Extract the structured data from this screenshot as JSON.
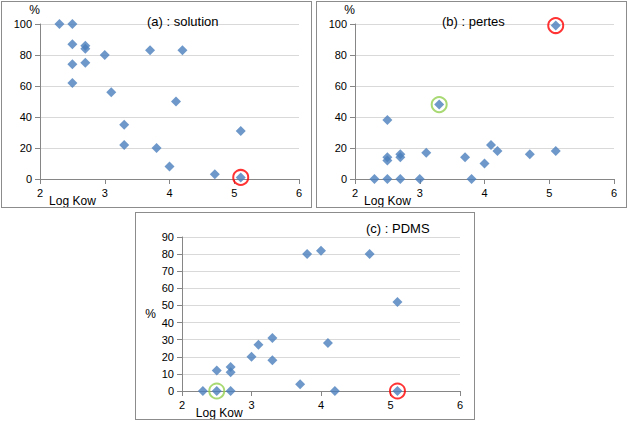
{
  "chart_data": [
    {
      "type": "scatter",
      "title": "(a) : solution",
      "x_label": "Log Kow",
      "y_label": "%",
      "xlim": [
        2,
        6
      ],
      "xticks": [
        2,
        3,
        4,
        5,
        6
      ],
      "ylim": [
        0,
        100
      ],
      "yticks": [
        0,
        20,
        40,
        60,
        80,
        100
      ],
      "grid": true,
      "series": [
        {
          "color": "#4a7ebb",
          "marker": "diamond",
          "x": [
            2.3,
            2.5,
            2.5,
            2.5,
            2.5,
            2.7,
            2.7,
            2.7,
            3.0,
            3.1,
            3.3,
            3.3,
            3.7,
            3.8,
            4.0,
            4.1,
            4.2,
            4.7,
            5.1,
            5.1
          ],
          "values": [
            100,
            100,
            87,
            74,
            62,
            86,
            84,
            75,
            80,
            56,
            35,
            22,
            83,
            20,
            8,
            50,
            83,
            3,
            31,
            1
          ]
        },
        {
          "color": "#ff0000",
          "marker": "ring",
          "x": [
            5.1
          ],
          "values": [
            1
          ]
        }
      ]
    },
    {
      "type": "scatter",
      "title": "(b) : pertes",
      "x_label": "Log Kow",
      "y_label": "%",
      "xlim": [
        2,
        6
      ],
      "xticks": [
        2,
        3,
        4,
        5,
        6
      ],
      "ylim": [
        0,
        100
      ],
      "yticks": [
        0,
        20,
        40,
        60,
        80,
        100
      ],
      "grid": true,
      "series": [
        {
          "color": "#4a7ebb",
          "marker": "diamond",
          "x": [
            2.3,
            2.5,
            2.5,
            2.5,
            2.5,
            2.7,
            2.7,
            2.7,
            3.0,
            3.1,
            3.3,
            3.7,
            3.8,
            4.0,
            4.1,
            4.2,
            4.7,
            5.1,
            5.1
          ],
          "values": [
            0,
            38,
            14,
            12,
            0,
            16,
            14,
            0,
            0,
            17,
            48,
            14,
            0,
            10,
            22,
            18,
            16,
            18,
            99
          ]
        },
        {
          "color": "#92d050",
          "marker": "ring",
          "x": [
            3.3
          ],
          "values": [
            48
          ]
        },
        {
          "color": "#ff0000",
          "marker": "ring",
          "x": [
            5.1
          ],
          "values": [
            99
          ]
        }
      ]
    },
    {
      "type": "scatter",
      "title": "(c) : PDMS",
      "x_label": "Log Kow",
      "y_label": "%",
      "xlim": [
        2,
        6
      ],
      "xticks": [
        2,
        3,
        4,
        5,
        6
      ],
      "ylim": [
        0,
        90
      ],
      "yticks": [
        0,
        10,
        20,
        30,
        40,
        50,
        60,
        70,
        80,
        90
      ],
      "grid": true,
      "series": [
        {
          "color": "#4a7ebb",
          "marker": "diamond",
          "x": [
            2.3,
            2.5,
            2.5,
            2.7,
            2.7,
            2.7,
            3.0,
            3.1,
            3.3,
            3.3,
            3.7,
            3.8,
            4.0,
            4.1,
            4.2,
            4.7,
            5.1,
            5.1
          ],
          "values": [
            0,
            12,
            0,
            14,
            11,
            0,
            20,
            27,
            31,
            18,
            4,
            80,
            82,
            28,
            0,
            80,
            52,
            0
          ]
        },
        {
          "color": "#92d050",
          "marker": "ring",
          "x": [
            2.5
          ],
          "values": [
            0
          ]
        },
        {
          "color": "#ff0000",
          "marker": "ring",
          "x": [
            5.1
          ],
          "values": [
            0
          ]
        }
      ]
    }
  ]
}
